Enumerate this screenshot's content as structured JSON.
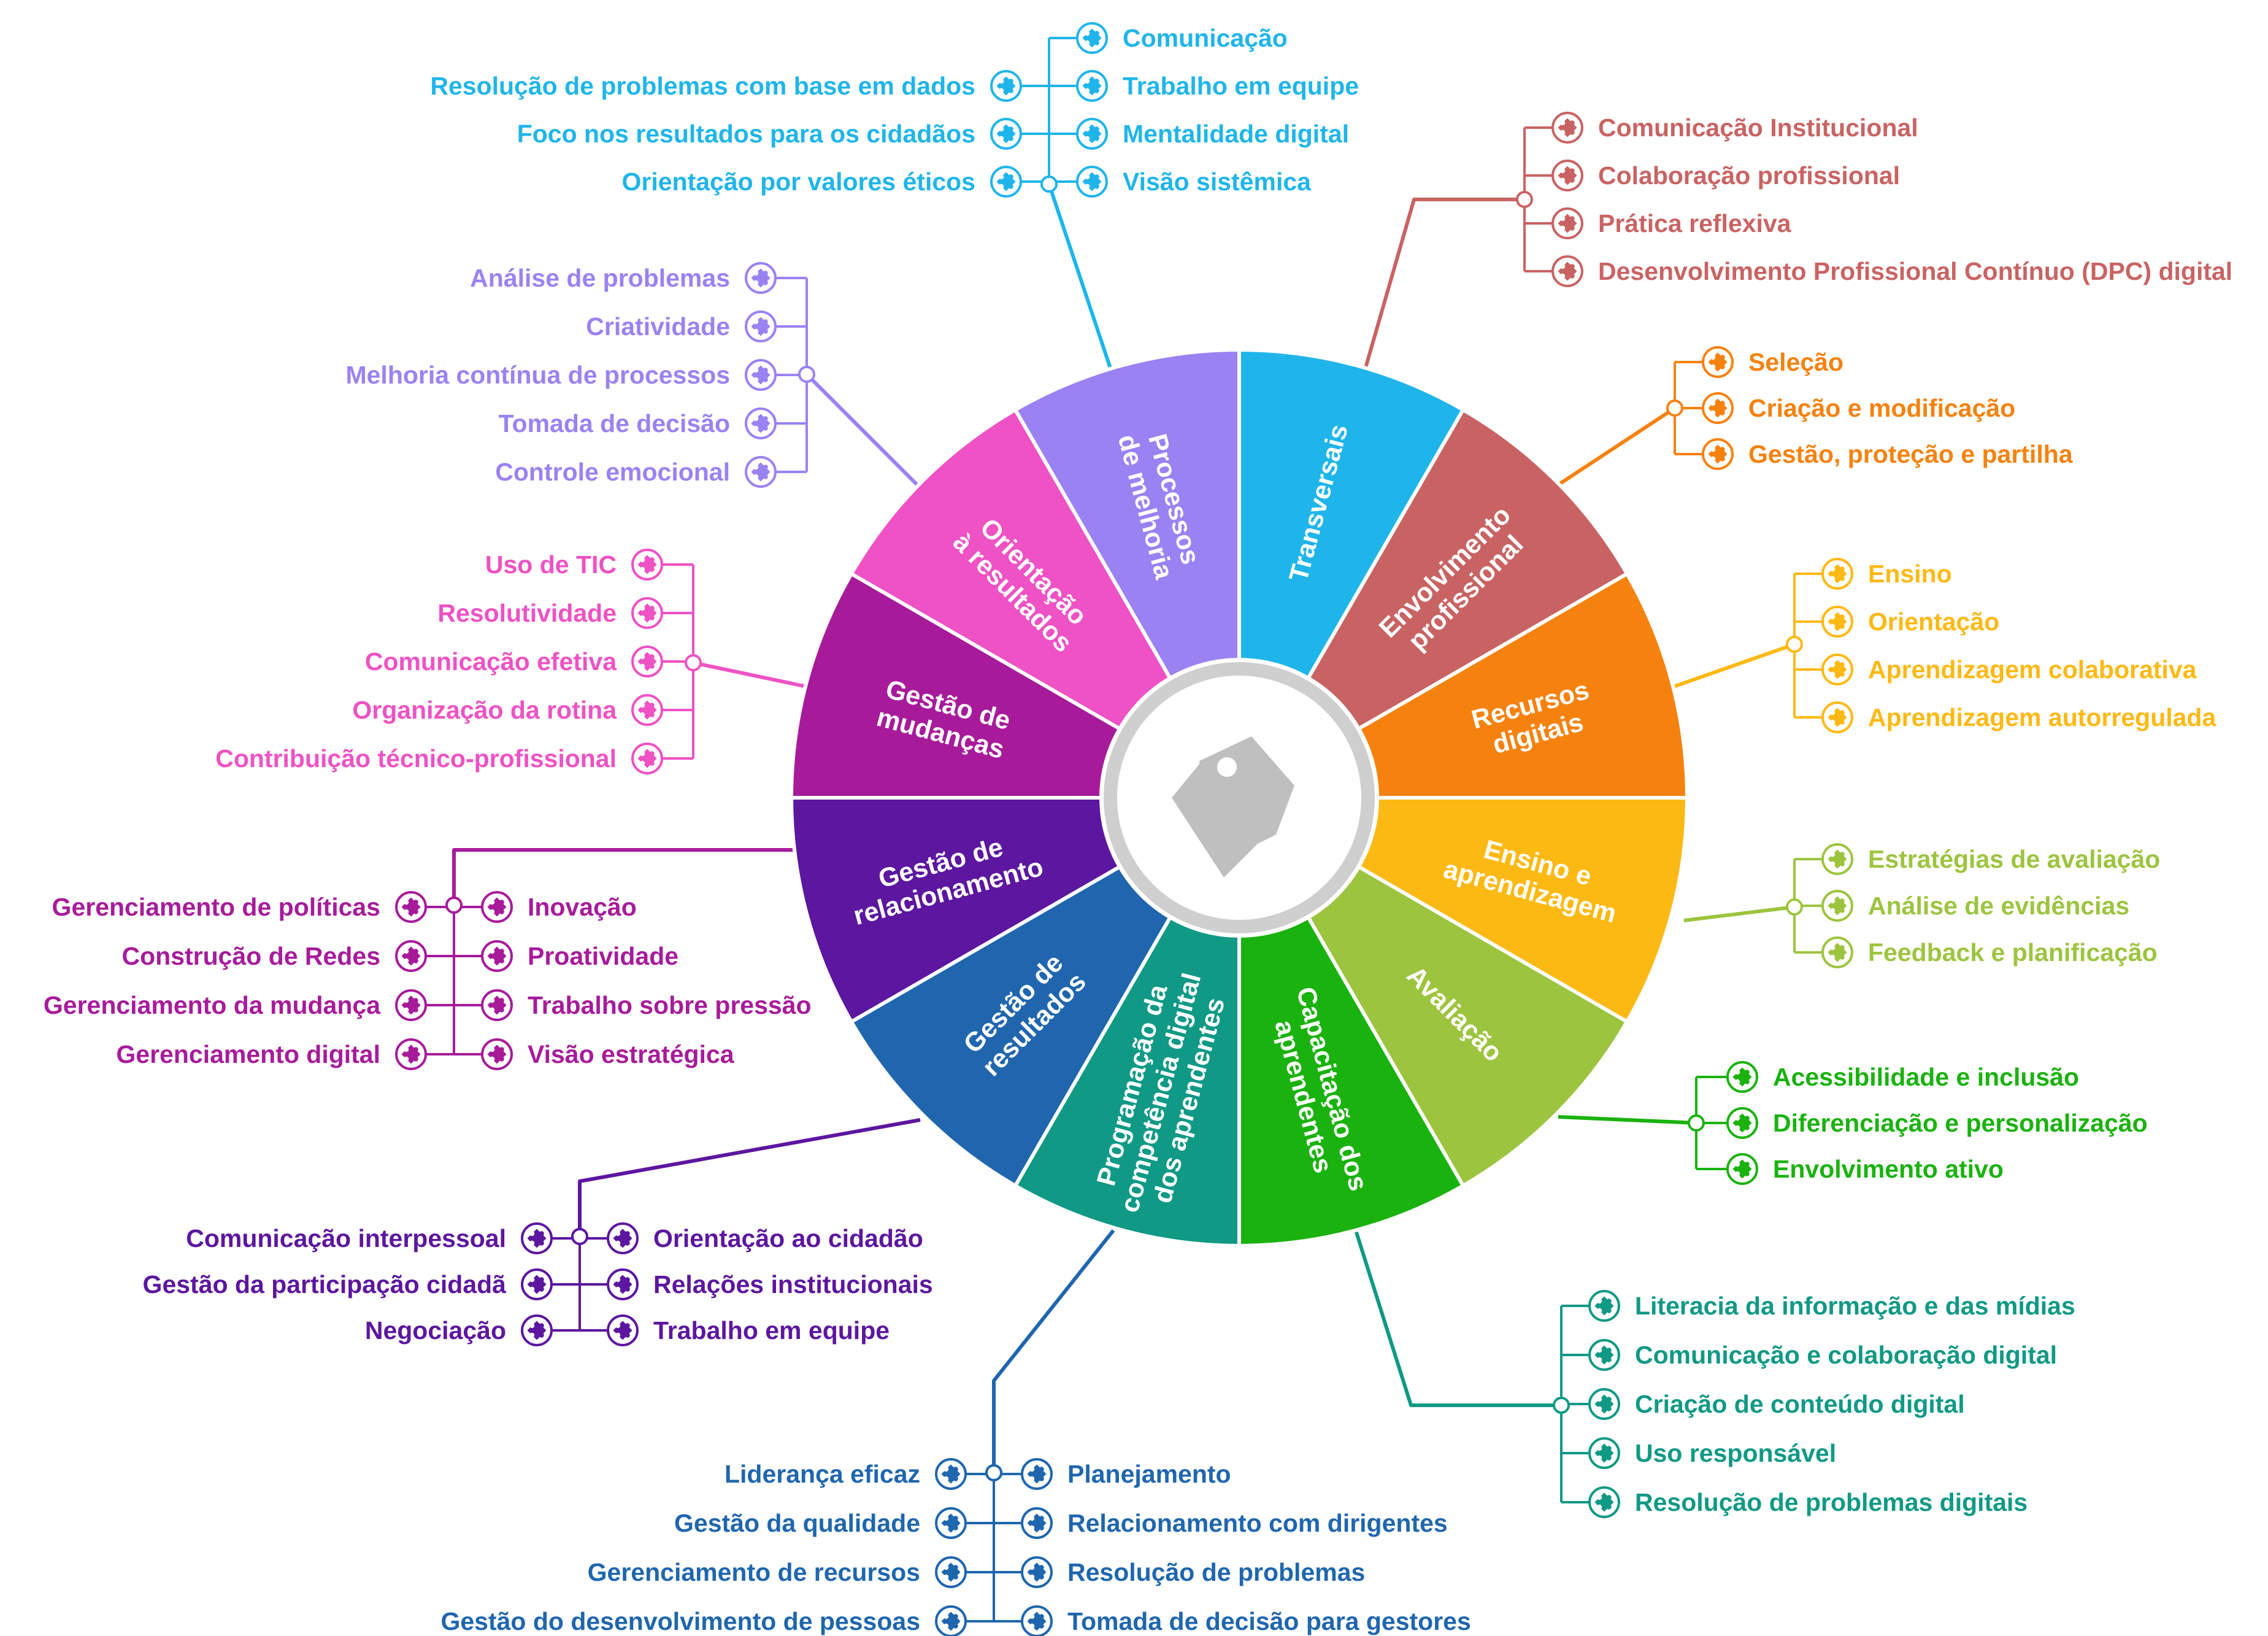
{
  "center": {
    "icon": "tag-icon",
    "ring_color": "#cfcfcf",
    "icon_color": "#bfbfbf"
  },
  "segments": [
    {
      "id": "transversais",
      "name_lines": [
        "Transversais"
      ],
      "color": "#1fb5ea",
      "groups": [
        {
          "side": "left",
          "items": [
            "Resolução de problemas com base em dados",
            "Foco nos resultados para os cidadãos",
            "Orientação por valores éticos"
          ]
        },
        {
          "side": "right",
          "items": [
            "Comunicação",
            "Trabalho em equipe",
            "Mentalidade digital",
            "Visão sistêmica"
          ]
        }
      ]
    },
    {
      "id": "envolvimento",
      "name_lines": [
        "Envolvimento",
        "profissional"
      ],
      "color": "#c96363",
      "groups": [
        {
          "side": "right",
          "items": [
            "Comunicação Institucional",
            "Colaboração profissional",
            "Prática reflexiva",
            "Desenvolvimento Profissional Contínuo (DPC) digital"
          ]
        }
      ]
    },
    {
      "id": "recursos",
      "name_lines": [
        "Recursos",
        "digitais"
      ],
      "color": "#f5820f",
      "groups": [
        {
          "side": "right",
          "items": [
            "Seleção",
            "Criação e modificação",
            "Gestão, proteção e partilha"
          ]
        }
      ]
    },
    {
      "id": "ensino",
      "name_lines": [
        "Ensino e",
        "aprendizagem"
      ],
      "color": "#fdb913",
      "groups": [
        {
          "side": "right",
          "items": [
            "Ensino",
            "Orientação",
            "Aprendizagem colaborativa",
            "Aprendizagem autorregulada"
          ]
        }
      ]
    },
    {
      "id": "avaliacao",
      "name_lines": [
        "Avaliação"
      ],
      "color": "#9dc43f",
      "groups": [
        {
          "side": "right",
          "items": [
            "Estratégias de avaliação",
            "Análise de evidências",
            "Feedback e planificação"
          ]
        }
      ]
    },
    {
      "id": "capacitacao",
      "name_lines": [
        "Capacitação dos",
        "aprendentes"
      ],
      "color": "#1ab20e",
      "groups": [
        {
          "side": "right",
          "items": [
            "Acessibilidade e inclusão",
            "Diferenciação e personalização",
            "Envolvimento ativo"
          ]
        }
      ]
    },
    {
      "id": "programacao",
      "name_lines": [
        "Programação da",
        "competência digital",
        "dos aprendentes"
      ],
      "color": "#109985",
      "groups": [
        {
          "side": "right",
          "items": [
            "Literacia da informação e das mídias",
            "Comunicação e colaboração digital",
            "Criação de conteúdo digital",
            "Uso responsável",
            "Resolução de problemas digitais"
          ]
        }
      ]
    },
    {
      "id": "gestao-resultados",
      "name_lines": [
        "Gestão de",
        "resultados"
      ],
      "color": "#1f66ae",
      "groups": [
        {
          "side": "left",
          "items": [
            "Liderança eficaz",
            "Gestão da qualidade",
            "Gerenciamento de recursos",
            "Gestão do desenvolvimento de pessoas"
          ]
        },
        {
          "side": "right",
          "items": [
            "Planejamento",
            "Relacionamento com dirigentes",
            "Resolução de problemas",
            "Tomada de decisão para gestores"
          ]
        }
      ]
    },
    {
      "id": "gestao-relacionamento",
      "name_lines": [
        "Gestão de",
        "relacionamento"
      ],
      "color": "#5c169f",
      "groups": [
        {
          "side": "left",
          "items": [
            "Comunicação interpessoal",
            "Gestão da participação cidadã",
            "Negociação"
          ]
        },
        {
          "side": "right",
          "items": [
            "Orientação ao cidadão",
            "Relações institucionais",
            "Trabalho em equipe"
          ]
        }
      ]
    },
    {
      "id": "gestao-mudancas",
      "name_lines": [
        "Gestão de",
        "mudanças"
      ],
      "color": "#a71b9b",
      "groups": [
        {
          "side": "left",
          "items": [
            "Gerenciamento de políticas",
            "Construção de Redes",
            "Gerenciamento da mudança",
            "Gerenciamento digital"
          ]
        },
        {
          "side": "right",
          "items": [
            "Inovação",
            "Proatividade",
            "Trabalho sobre pressão",
            "Visão estratégica"
          ]
        }
      ]
    },
    {
      "id": "orientacao-resultados",
      "name_lines": [
        "Orientação",
        "à resultados"
      ],
      "color": "#ee52c4",
      "groups": [
        {
          "side": "left",
          "items": [
            "Uso de TIC",
            "Resolutividade",
            "Comunicação efetiva",
            "Organização da rotina",
            "Contribuição técnico-profissional"
          ]
        }
      ]
    },
    {
      "id": "processos-melhoria",
      "name_lines": [
        "Processos",
        "de melhoria"
      ],
      "color": "#9a82f2",
      "groups": [
        {
          "side": "left",
          "items": [
            "Análise de problemas",
            "Criatividade",
            "Melhoria contínua de processos",
            "Tomada de decisão",
            "Controle emocional"
          ]
        }
      ]
    }
  ],
  "leaf_icon": "puzzle-icon"
}
